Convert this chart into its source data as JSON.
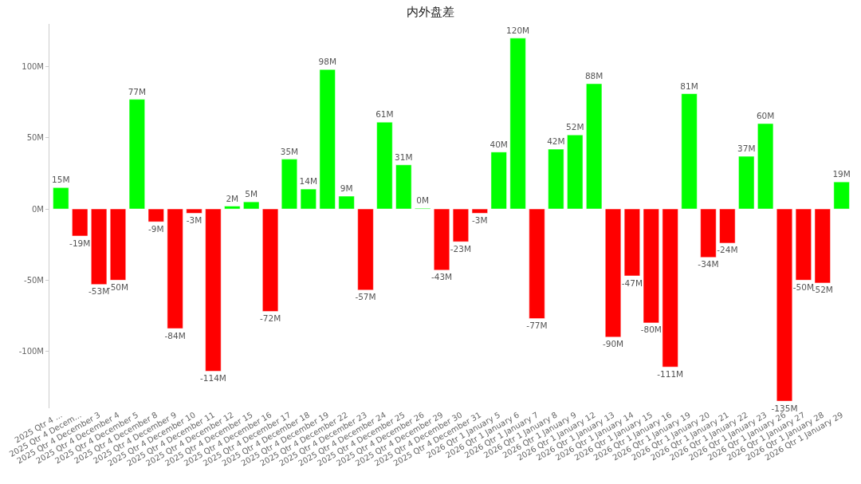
{
  "chart_data": {
    "type": "bar",
    "title": "内外盘差",
    "categories": [
      "2025 Qtr 4 ...",
      "2025 Qtr 4 Decem...",
      "2025 Qtr 4 December 3",
      "2025 Qtr 4 December 4",
      "2025 Qtr 4 December 5",
      "2025 Qtr 4 December 8",
      "2025 Qtr 4 December 9",
      "2025 Qtr 4 December 10",
      "2025 Qtr 4 December 11",
      "2025 Qtr 4 December 12",
      "2025 Qtr 4 December 15",
      "2025 Qtr 4 December 16",
      "2025 Qtr 4 December 17",
      "2025 Qtr 4 December 18",
      "2025 Qtr 4 December 19",
      "2025 Qtr 4 December 22",
      "2025 Qtr 4 December 23",
      "2025 Qtr 4 December 24",
      "2025 Qtr 4 December 25",
      "2025 Qtr 4 December 26",
      "2025 Qtr 4 December 29",
      "2025 Qtr 4 December 30",
      "2025 Qtr 4 December 31",
      "2026 Qtr 1 January 5",
      "2026 Qtr 1 January 6",
      "2026 Qtr 1 January 7",
      "2026 Qtr 1 January 8",
      "2026 Qtr 1 January 9",
      "2026 Qtr 1 January 12",
      "2026 Qtr 1 January 13",
      "2026 Qtr 1 January 14",
      "2026 Qtr 1 January 15",
      "2026 Qtr 1 January 16",
      "2026 Qtr 1 January 19",
      "2026 Qtr 1 January 20",
      "2026 Qtr 1 January 21",
      "2026 Qtr 1 January 22",
      "2026 Qtr 1 January 23",
      "2026 Qtr 1 January 26",
      "2026 Qtr 1 January 27",
      "2026 Qtr 1 January 28",
      "2026 Qtr 1 January 29"
    ],
    "values": [
      15,
      -19,
      -53,
      -50,
      77,
      -9,
      -84,
      -3,
      -114,
      2,
      5,
      -72,
      35,
      14,
      98,
      9,
      -57,
      61,
      31,
      0.5,
      -43,
      -23,
      -3,
      40,
      120,
      -77,
      42,
      52,
      88,
      -90,
      -47,
      -80,
      -111,
      81,
      -34,
      -24,
      37,
      60,
      -135,
      -50,
      -52,
      19
    ],
    "value_labels": [
      "15M",
      "-19M",
      "-53M",
      "-50M",
      "77M",
      "-9M",
      "-84M",
      "-3M",
      "-114M",
      "2M",
      "5M",
      "-72M",
      "35M",
      "14M",
      "98M",
      "9M",
      "-57M",
      "61M",
      "31M",
      "0M",
      "-43M",
      "-23M",
      "-3M",
      "40M",
      "120M",
      "-77M",
      "42M",
      "52M",
      "88M",
      "-90M",
      "-47M",
      "-80M",
      "-111M",
      "81M",
      "-34M",
      "-24M",
      "37M",
      "60M",
      "-135M",
      "-50M",
      "-52M",
      "19M"
    ],
    "colors": [
      "#00ff00",
      "#ff0000",
      "#ff0000",
      "#ff0000",
      "#00ff00",
      "#ff0000",
      "#ff0000",
      "#ff0000",
      "#ff0000",
      "#00ff00",
      "#00ff00",
      "#ff0000",
      "#00ff00",
      "#00ff00",
      "#00ff00",
      "#00ff00",
      "#ff0000",
      "#00ff00",
      "#00ff00",
      "#00ff00",
      "#ff0000",
      "#ff0000",
      "#ff0000",
      "#00ff00",
      "#00ff00",
      "#ff0000",
      "#00ff00",
      "#00ff00",
      "#00ff00",
      "#ff0000",
      "#ff0000",
      "#ff0000",
      "#ff0000",
      "#00ff00",
      "#ff0000",
      "#ff0000",
      "#00ff00",
      "#00ff00",
      "#ff0000",
      "#ff0000",
      "#ff0000",
      "#00ff00"
    ],
    "ylim": [
      -140,
      130
    ],
    "yticks": [
      {
        "value": -100,
        "label": "-100M"
      },
      {
        "value": -50,
        "label": "-50M"
      },
      {
        "value": 0,
        "label": "0M"
      },
      {
        "value": 50,
        "label": "50M"
      },
      {
        "value": 100,
        "label": "100M"
      }
    ],
    "grid": false,
    "legend": false
  }
}
